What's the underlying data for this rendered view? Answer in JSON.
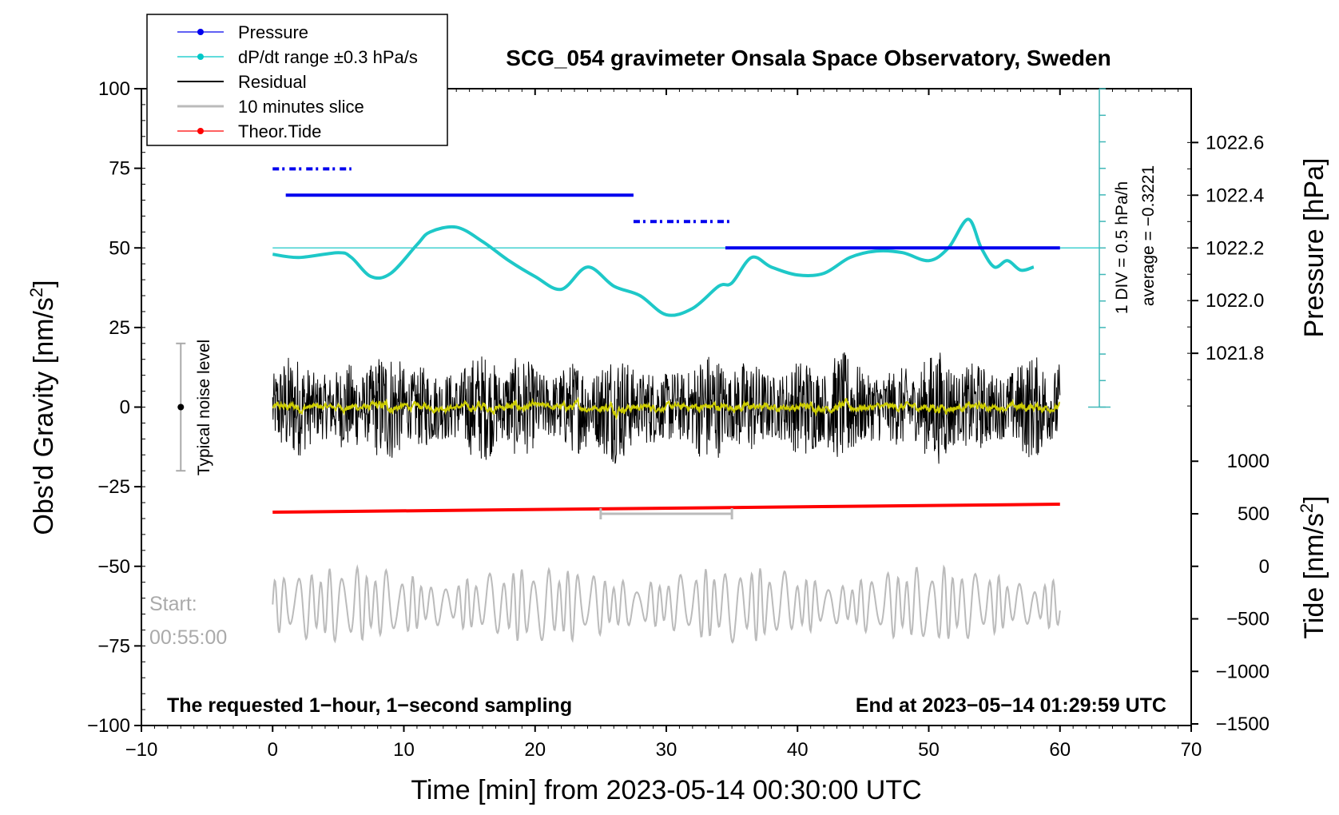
{
  "chart_data": {
    "type": "line",
    "title": "SCG_054 gravimeter Onsala Space Observatory, Sweden",
    "xlabel": "Time [min] from 2023-05-14 00:30:00 UTC",
    "xlim": [
      -10,
      70
    ],
    "xticks": [
      "-10",
      "0",
      "10",
      "20",
      "30",
      "40",
      "50",
      "60",
      "70"
    ],
    "ylabel_left": "Obs'd Gravity [nm/s",
    "ylabel_left_sup": "2",
    "ylabel_left_end": "]",
    "ylim_left": [
      -100,
      100
    ],
    "yticks_left": [
      "100",
      "75",
      "50",
      "25",
      "0",
      "-25",
      "-50",
      "-75",
      "-100"
    ],
    "ylabel_pressure": "Pressure [hPa]",
    "pressure_ticks": [
      "1022.6",
      "1022.4",
      "1022.2",
      "1022.0",
      "1021.8"
    ],
    "ylabel_tide": "Tide [nm/s",
    "ylabel_tide_sup": "2",
    "ylabel_tide_end": "]",
    "tide_ticks": [
      "1000",
      "500",
      "0",
      "-500",
      "-1000",
      "-1500"
    ],
    "legend": [
      {
        "label": "Pressure",
        "color": "#0000ee"
      },
      {
        "label": "dP/dt range ±0.3 hPa/s",
        "color": "#00c8c8"
      },
      {
        "label": "Residual",
        "color": "#000000"
      },
      {
        "label": "10 minutes slice",
        "color": "#bbbbbb"
      },
      {
        "label": "Theor.Tide",
        "color": "#ff0000"
      }
    ],
    "pressure_scale_label": "1 DIV = 0.5 hPa/h",
    "pressure_average_label": "average = −0.3221",
    "noise_label": "Typical noise level",
    "noise_range": [
      -20,
      20
    ],
    "start_label": "Start:",
    "start_time": "00:55:00",
    "bottom_left_note": "The requested 1−hour, 1−second sampling",
    "bottom_right_note": "End at 2023−05−14 01:29:59 UTC",
    "slice_window_min": [
      25,
      35
    ],
    "pressure_series": {
      "name": "Pressure",
      "unit": "hPa",
      "segments": [
        {
          "x_start": 0,
          "x_end": 6,
          "value": 1022.5
        },
        {
          "x_start": 1,
          "x_end": 27.5,
          "value": 1022.4
        },
        {
          "x_start": 27.5,
          "x_end": 34.8,
          "value": 1022.3
        },
        {
          "x_start": 34.5,
          "x_end": 60,
          "value": 1022.2
        }
      ]
    },
    "dpdt_series": {
      "name": "dP/dt",
      "baseline": 50,
      "x": [
        0,
        2,
        5,
        6,
        7.5,
        9,
        11,
        12,
        14,
        16,
        18,
        20,
        22,
        24,
        26,
        28,
        30,
        32,
        34,
        35,
        36.5,
        38,
        40,
        42,
        44,
        46,
        48,
        50,
        51.5,
        53,
        54,
        55,
        56,
        57,
        58
      ],
      "values": [
        48,
        47,
        48.5,
        47,
        41,
        42,
        51,
        55,
        56.5,
        52,
        46,
        41,
        37,
        44,
        38,
        35,
        29,
        31,
        38,
        39,
        47,
        44,
        41.5,
        42,
        47,
        49,
        48.5,
        46,
        50,
        59,
        50,
        44,
        46,
        43,
        44
      ]
    },
    "residual_series": {
      "name": "Residual",
      "x_range": [
        0,
        60
      ],
      "amplitude_nm_s2": 18
    },
    "tide_series": {
      "name": "Theor.Tide",
      "x": [
        0,
        60
      ],
      "values": [
        -33,
        -30.5
      ]
    },
    "slice_series": {
      "name": "10 minutes slice",
      "center": -62,
      "amplitude": 12
    },
    "colors": {
      "pressure": "#0000ee",
      "dpdt": "#1ec8c8",
      "residual": "#000000",
      "residual_smooth": "#cccc00",
      "tide": "#ff0000",
      "slice": "#bbbbbb",
      "pressure_axis": "#40b8b8"
    }
  }
}
